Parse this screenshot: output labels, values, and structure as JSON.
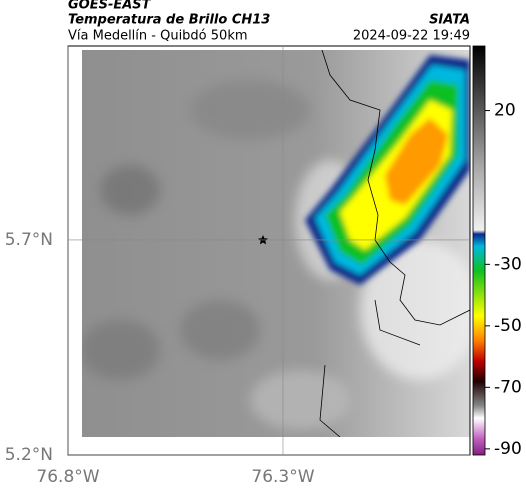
{
  "header": {
    "source": "GOES-EAST",
    "product": "Temperatura de Brillo CH13",
    "route": "Vía Medellín - Quibdó 50km",
    "agency": "SIATA",
    "timestamp": "2024-09-22 19:49"
  },
  "map": {
    "xlim": [
      -76.8,
      -75.865
    ],
    "ylim": [
      5.2,
      6.151
    ],
    "xticks": [
      {
        "value": -76.8,
        "label": "76.8°W"
      },
      {
        "value": -76.3,
        "label": "76.3°W"
      }
    ],
    "yticks": [
      {
        "value": 5.7,
        "label": "5.7°N"
      },
      {
        "value": 5.2,
        "label": "5.2°N"
      }
    ]
  },
  "colorbar": {
    "lim": [
      -92,
      41
    ],
    "ticks": [
      20,
      -30,
      -50,
      -70,
      -90
    ]
  }
}
